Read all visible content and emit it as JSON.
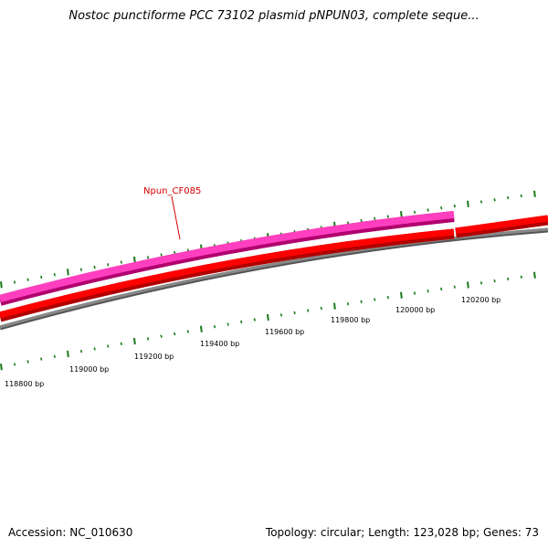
{
  "title": "Nostoc punctiforme PCC 73102 plasmid pNPUN03, complete seque...",
  "footer": {
    "accession": "Accession: NC_010630",
    "summary": "Topology: circular; Length: 123,028 bp; Genes: 73"
  },
  "map": {
    "gene_label": "Npun_CF085",
    "tick_labels": [
      "118800 bp",
      "119000 bp",
      "119200 bp",
      "119400 bp",
      "119600 bp",
      "119800 bp",
      "120000 bp",
      "120200 bp"
    ],
    "colors": {
      "forward_gene": "#ff3fbf",
      "forward_gene_dark": "#b0006e",
      "cds": "#ff0000",
      "cds_dark": "#b00000",
      "backbone": "#888888",
      "backbone_dark": "#555555",
      "ticks": "#1a7a1a",
      "label_leader": "#d40000"
    }
  }
}
